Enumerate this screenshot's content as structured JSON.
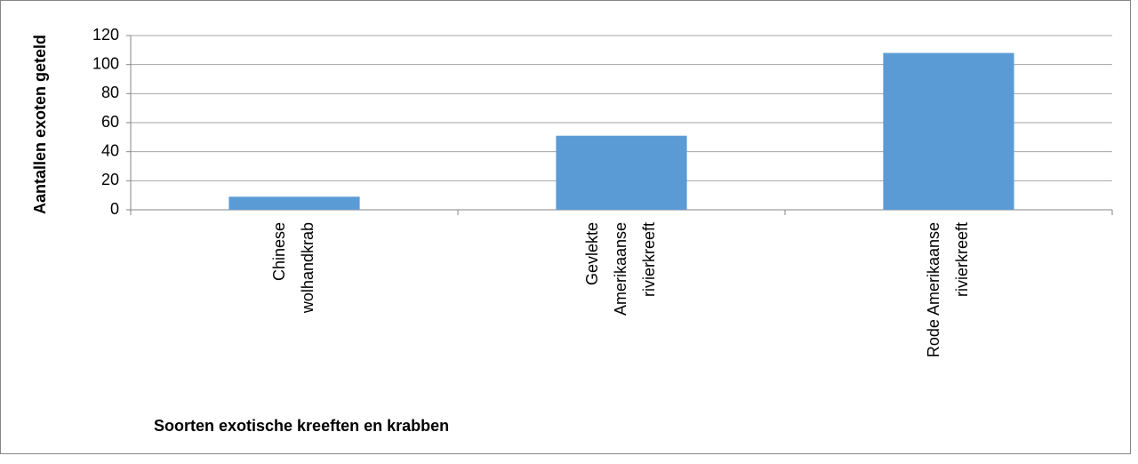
{
  "chart_data": {
    "type": "bar",
    "categories": [
      [
        "Chinese",
        "wolhandkrab"
      ],
      [
        "Gevlekte",
        "Amerikaanse",
        "rivierkreeft"
      ],
      [
        "Rode Amerikaanse",
        "rivierkreeft"
      ]
    ],
    "values": [
      9,
      51,
      108
    ],
    "color": "#5b9bd5",
    "ylim": [
      0,
      120
    ],
    "yticks": [
      0,
      20,
      40,
      60,
      80,
      100,
      120
    ],
    "grid": true,
    "xlabel": "Soorten exotische kreeften en krabben",
    "ylabel": "Aantallen exoten geteld"
  }
}
